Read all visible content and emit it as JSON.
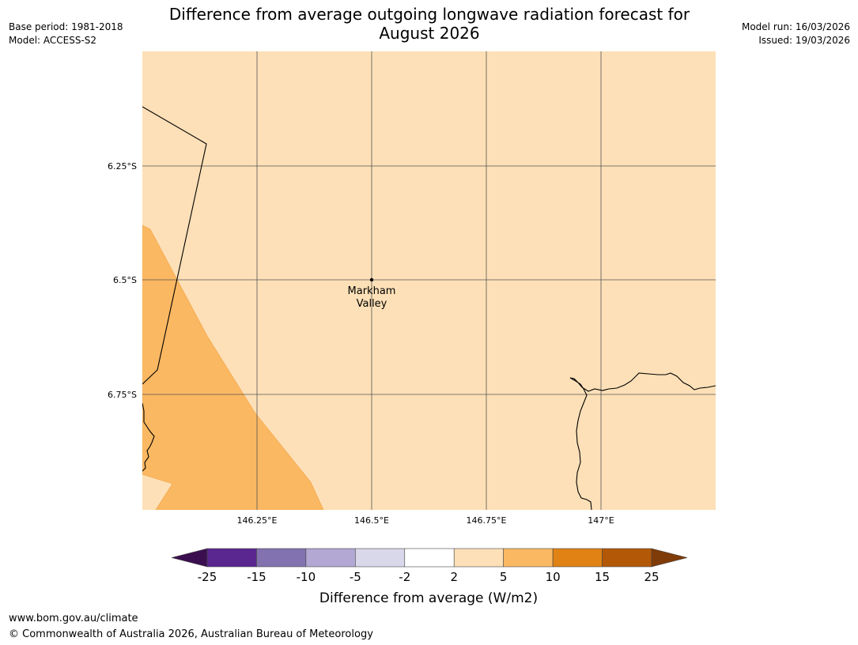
{
  "header": {
    "title_line1": "Difference from average outgoing longwave radiation forecast for",
    "title_line2": "August 2026",
    "base_period": "Base period: 1981-2018",
    "model": "Model: ACCESS-S2",
    "model_run": "Model run: 16/03/2026",
    "issued": "Issued: 19/03/2026"
  },
  "map": {
    "lon_ticks": [
      "146.25°E",
      "146.5°E",
      "146.75°E",
      "147°E"
    ],
    "lat_ticks": [
      "6.25°S",
      "6.5°S",
      "6.75°S"
    ],
    "place_marker": {
      "name_line1": "Markham",
      "name_line2": "Valley"
    },
    "colors": {
      "background_category": "#fde0b7",
      "anomaly_category": "#fbb862",
      "gridline": "#555555",
      "coastline": "#000000"
    },
    "categories_shown": [
      "2 to 5",
      "5 to 10"
    ]
  },
  "legend": {
    "label": "Difference from average (W/m2)",
    "tick_labels": [
      "-25",
      "-15",
      "-10",
      "-5",
      "-2",
      "2",
      "5",
      "10",
      "15",
      "25"
    ],
    "bins": [
      {
        "range": "< -25",
        "color": "#3b0f4f"
      },
      {
        "range": "-25 to -15",
        "color": "#5a2690"
      },
      {
        "range": "-15 to -10",
        "color": "#8372b0"
      },
      {
        "range": "-10 to -5",
        "color": "#b2a8d3"
      },
      {
        "range": "-5 to -2",
        "color": "#d9d8ea"
      },
      {
        "range": "-2 to 2",
        "color": "#ffffff"
      },
      {
        "range": "2 to 5",
        "color": "#fde0b7"
      },
      {
        "range": "5 to 10",
        "color": "#fbb862"
      },
      {
        "range": "10 to 15",
        "color": "#e08214"
      },
      {
        "range": "15 to 25",
        "color": "#b35806"
      },
      {
        "range": "> 25",
        "color": "#7f3b08"
      }
    ]
  },
  "footer": {
    "website": "www.bom.gov.au/climate",
    "copyright": "© Commonwealth of Australia 2026, Australian Bureau of Meteorology"
  }
}
